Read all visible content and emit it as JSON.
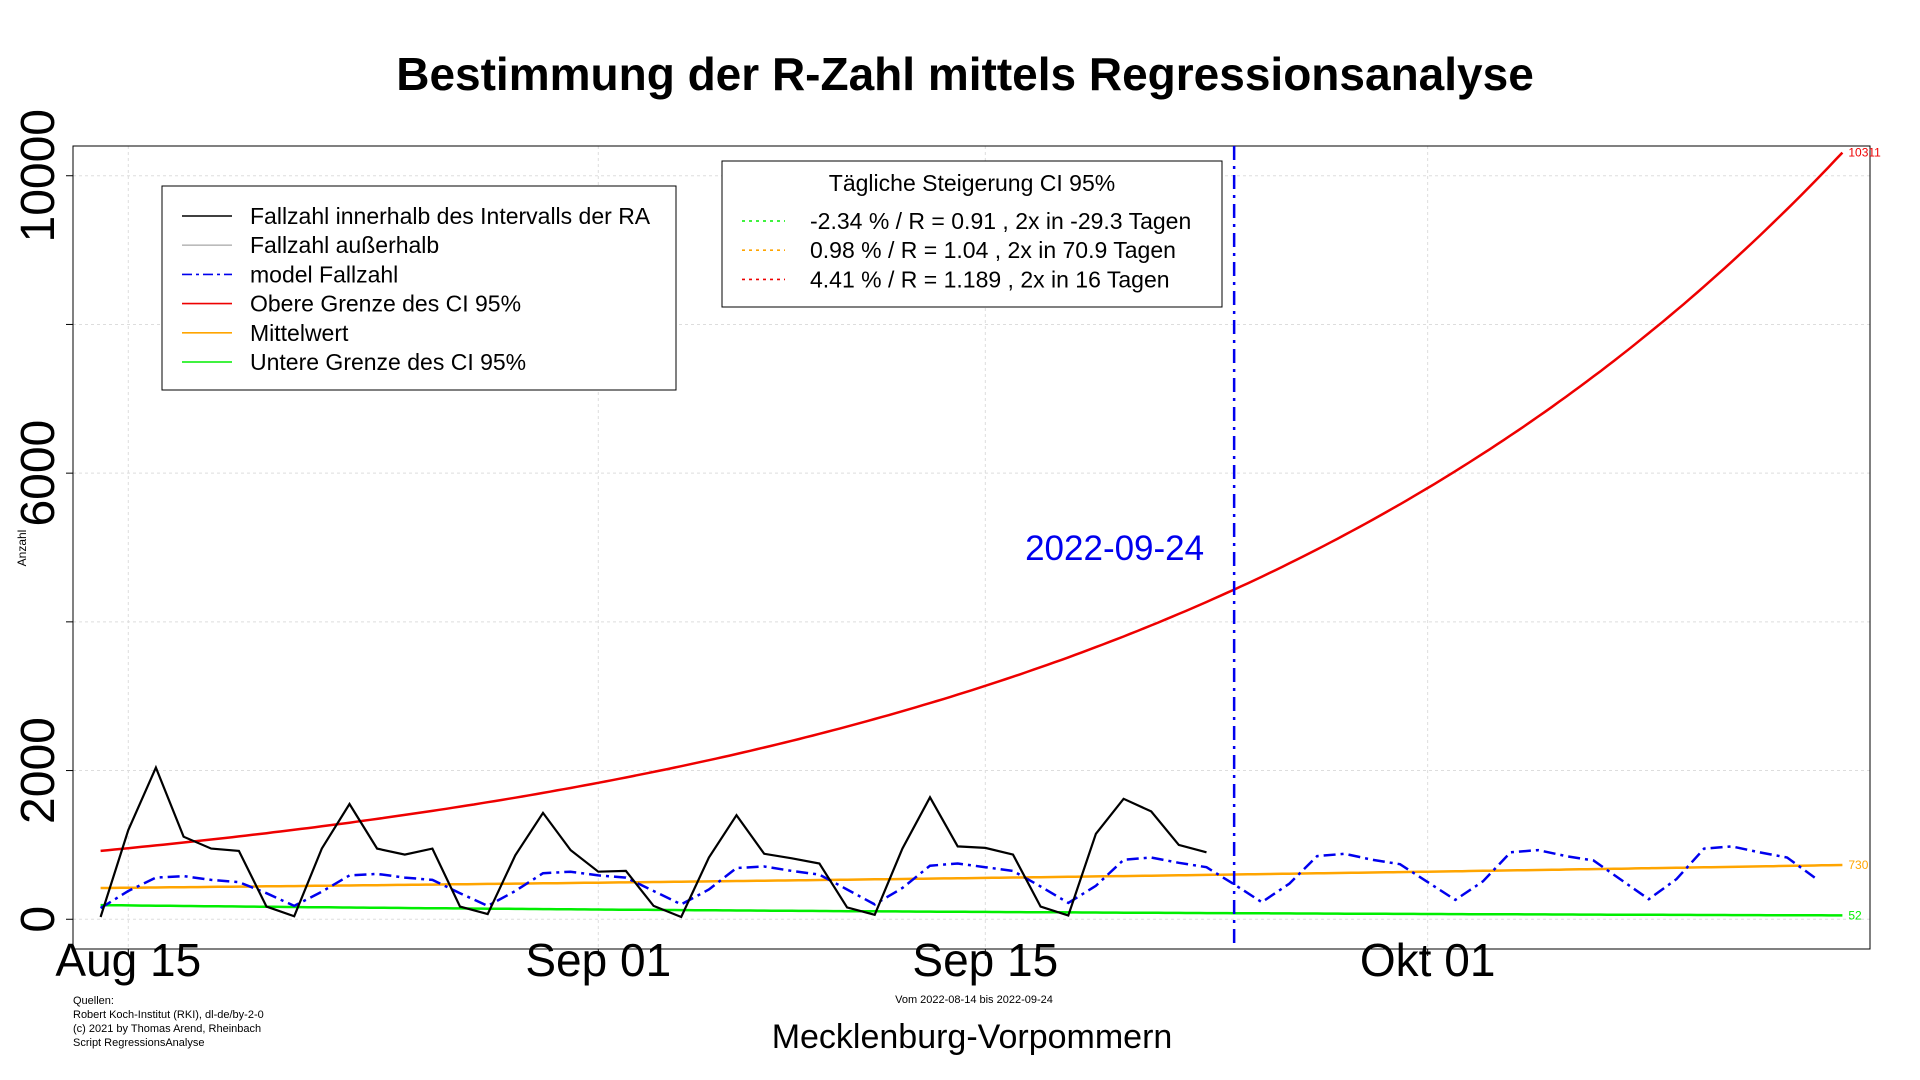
{
  "chart_data": {
    "type": "line",
    "title": "Bestimmung der R-Zahl mittels Regressionsanalyse",
    "xlabel": "Mecklenburg-Vorpommern",
    "ylabel": "Anzahl",
    "subtitle": "Vom 2022-08-14 bis 2022-09-24",
    "xlim": [
      "2022-08-13",
      "2022-10-17"
    ],
    "ylim": [
      -400,
      10400
    ],
    "y_ticks": [
      0,
      2000,
      6000,
      10000
    ],
    "x_ticks": [
      {
        "date": "2022-08-15",
        "label": "Aug 15"
      },
      {
        "date": "2022-09-01",
        "label": "Sep 01"
      },
      {
        "date": "2022-09-15",
        "label": "Sep 15"
      },
      {
        "date": "2022-10-01",
        "label": "Okt 01"
      }
    ],
    "grid": true,
    "vertical_marker": {
      "date": "2022-09-24",
      "label": "2022-09-24",
      "color": "#0000ee"
    },
    "colors": {
      "observed": "#000000",
      "outside": "#bbbbbb",
      "model": "#0000ee",
      "upper": "#ee0000",
      "mean": "#ffa500",
      "lower": "#00ee00"
    },
    "series": [
      {
        "name": "Fallzahl innerhalb des Intervalls der RA",
        "key": "observed",
        "x": [
          "2022-08-14",
          "2022-08-15",
          "2022-08-16",
          "2022-08-17",
          "2022-08-18",
          "2022-08-19",
          "2022-08-20",
          "2022-08-21",
          "2022-08-22",
          "2022-08-23",
          "2022-08-24",
          "2022-08-25",
          "2022-08-26",
          "2022-08-27",
          "2022-08-28",
          "2022-08-29",
          "2022-08-30",
          "2022-08-31",
          "2022-09-01",
          "2022-09-02",
          "2022-09-03",
          "2022-09-04",
          "2022-09-05",
          "2022-09-06",
          "2022-09-07",
          "2022-09-08",
          "2022-09-09",
          "2022-09-10",
          "2022-09-11",
          "2022-09-12",
          "2022-09-13",
          "2022-09-14",
          "2022-09-15",
          "2022-09-16",
          "2022-09-17",
          "2022-09-18",
          "2022-09-19",
          "2022-09-20",
          "2022-09-21",
          "2022-09-22",
          "2022-09-23"
        ],
        "y": [
          30,
          1200,
          2040,
          1110,
          950,
          920,
          170,
          40,
          950,
          1550,
          950,
          870,
          950,
          170,
          70,
          860,
          1430,
          930,
          640,
          650,
          180,
          30,
          830,
          1400,
          880,
          820,
          750,
          160,
          60,
          950,
          1640,
          980,
          960,
          870,
          170,
          50,
          1150,
          1620,
          1450,
          1000,
          900
        ]
      },
      {
        "name": "Fallzahl außerhalb",
        "key": "outside",
        "x": [],
        "y": []
      },
      {
        "name": "model Fallzahl",
        "key": "model",
        "x": [
          "2022-08-14",
          "2022-08-15",
          "2022-08-16",
          "2022-08-17",
          "2022-08-18",
          "2022-08-19",
          "2022-08-20",
          "2022-08-21",
          "2022-08-22",
          "2022-08-23",
          "2022-08-24",
          "2022-08-25",
          "2022-08-26",
          "2022-08-27",
          "2022-08-28",
          "2022-08-29",
          "2022-08-30",
          "2022-08-31",
          "2022-09-01",
          "2022-09-02",
          "2022-09-03",
          "2022-09-04",
          "2022-09-05",
          "2022-09-06",
          "2022-09-07",
          "2022-09-08",
          "2022-09-09",
          "2022-09-10",
          "2022-09-11",
          "2022-09-12",
          "2022-09-13",
          "2022-09-14",
          "2022-09-15",
          "2022-09-16",
          "2022-09-17",
          "2022-09-18",
          "2022-09-19",
          "2022-09-20",
          "2022-09-21",
          "2022-09-22",
          "2022-09-23",
          "2022-09-24",
          "2022-09-25",
          "2022-09-26",
          "2022-09-27",
          "2022-09-28",
          "2022-09-29",
          "2022-09-30",
          "2022-10-01",
          "2022-10-02",
          "2022-10-03",
          "2022-10-04",
          "2022-10-05",
          "2022-10-06",
          "2022-10-07",
          "2022-10-08",
          "2022-10-09",
          "2022-10-10",
          "2022-10-11",
          "2022-10-12",
          "2022-10-13",
          "2022-10-14",
          "2022-10-15"
        ],
        "y": [
          150,
          380,
          560,
          580,
          530,
          500,
          350,
          180,
          370,
          590,
          610,
          560,
          530,
          350,
          180,
          380,
          620,
          640,
          590,
          560,
          380,
          200,
          400,
          690,
          710,
          650,
          600,
          400,
          200,
          420,
          720,
          750,
          700,
          650,
          440,
          220,
          450,
          800,
          830,
          760,
          700,
          470,
          230,
          480,
          850,
          880,
          800,
          740,
          500,
          260,
          510,
          900,
          930,
          850,
          790,
          530,
          270,
          540,
          950,
          980,
          900,
          830,
          560
        ]
      },
      {
        "name": "Obere Grenze des CI 95%",
        "key": "upper",
        "start": "2022-08-14",
        "end": "2022-10-16",
        "y_start": 920,
        "y_end": 10311,
        "end_label": "10311"
      },
      {
        "name": "Mittelwert",
        "key": "mean",
        "start": "2022-08-14",
        "end": "2022-10-16",
        "y_start": 420,
        "y_end": 730,
        "end_label": "730"
      },
      {
        "name": "Untere Grenze des CI 95%",
        "key": "lower",
        "start": "2022-08-14",
        "end": "2022-10-16",
        "y_start": 190,
        "y_end": 52,
        "end_label": "52"
      }
    ],
    "legend": {
      "placement": "top-left",
      "items": [
        {
          "label": "Fallzahl innerhalb des Intervalls der RA",
          "key": "observed",
          "dash": "solid"
        },
        {
          "label": "Fallzahl außerhalb",
          "key": "outside",
          "dash": "solid"
        },
        {
          "label": "model Fallzahl",
          "key": "model",
          "dash": "dashdot"
        },
        {
          "label": "Obere Grenze des CI 95%",
          "key": "upper",
          "dash": "solid"
        },
        {
          "label": "Mittelwert",
          "key": "mean",
          "dash": "solid"
        },
        {
          "label": "Untere Grenze des CI 95%",
          "key": "lower",
          "dash": "solid"
        }
      ]
    },
    "ci_legend": {
      "placement": "top-center",
      "title": "Tägliche Steigerung CI  95%",
      "items": [
        {
          "label": "-2.34 % / R = 0.91 , 2x in -29.3 Tagen",
          "key": "lower"
        },
        {
          "label": "0.98 % / R = 1.04 , 2x in 70.9 Tagen",
          "key": "mean"
        },
        {
          "label": "4.41 % / R = 1.189 , 2x in 16 Tagen",
          "key": "upper"
        }
      ]
    },
    "sources": [
      "Quellen:",
      "Robert Koch-Institut (RKI), dl-de/by-2-0",
      "(c) 2021 by Thomas Arend, Rheinbach",
      "Script RegressionsAnalyse"
    ]
  }
}
